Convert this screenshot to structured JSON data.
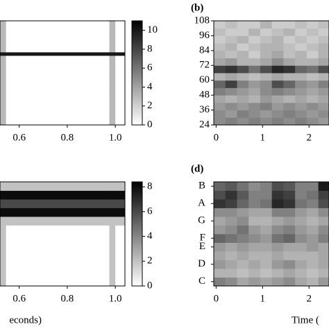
{
  "chart_data": [
    {
      "type": "heatmap",
      "x_edges": [
        0.52,
        0.545,
        0.975,
        1.0,
        1.04
      ],
      "z": [
        [
          3,
          0,
          3,
          0
        ],
        [
          3,
          0,
          3,
          0
        ],
        [
          3,
          0,
          3,
          0
        ],
        [
          3,
          0,
          3,
          0
        ],
        [
          3,
          0,
          3,
          0
        ],
        [
          3,
          0,
          3,
          0
        ],
        [
          3,
          0,
          3,
          0
        ],
        [
          3,
          0,
          3,
          0
        ],
        [
          3,
          0,
          3,
          0
        ],
        [
          3,
          0,
          3,
          0
        ],
        [
          3,
          0,
          3,
          0
        ],
        [
          3,
          0,
          3,
          0
        ],
        [
          3,
          0,
          3,
          0
        ],
        [
          3,
          0,
          3,
          0
        ],
        [
          3,
          0,
          3,
          0
        ],
        [
          3,
          0,
          3,
          0
        ],
        [
          3,
          0,
          3,
          0
        ],
        [
          3,
          0,
          3,
          0
        ],
        [
          3,
          0,
          3,
          0
        ],
        [
          3,
          0,
          3,
          0
        ],
        [
          10,
          10,
          10,
          10
        ],
        [
          3,
          0,
          3,
          0
        ],
        [
          3,
          0,
          3,
          0
        ],
        [
          3,
          0,
          3,
          0
        ],
        [
          3,
          0,
          3,
          0
        ],
        [
          3,
          0,
          3,
          0
        ],
        [
          3,
          0,
          3,
          0
        ],
        [
          3,
          0,
          3,
          0
        ],
        [
          3,
          0,
          3,
          0
        ],
        [
          3,
          0,
          3,
          0
        ]
      ],
      "xlim": [
        0.52,
        1.04
      ],
      "xticks": [
        0.6,
        0.8,
        {
          "value": 1.0,
          "label": "1.0"
        }
      ],
      "clim": [
        0,
        11
      ],
      "cticks": [
        0,
        2,
        4,
        6,
        8,
        10
      ]
    },
    {
      "type": "heatmap",
      "label": "(b)",
      "x_edges": [
        -0.05,
        0.2,
        0.45,
        0.7,
        0.95,
        1.2,
        1.45,
        1.7,
        1.95,
        2.2,
        2.43
      ],
      "z": [
        [
          0.45,
          0.5,
          0.45,
          0.5,
          0.45,
          0.5,
          0.45,
          0.5,
          0.45,
          0.4
        ],
        [
          0.45,
          0.4,
          0.5,
          0.45,
          0.4,
          0.45,
          0.5,
          0.45,
          0.4,
          0.45
        ],
        [
          0.4,
          0.45,
          0.4,
          0.45,
          0.5,
          0.4,
          0.45,
          0.4,
          0.45,
          0.4
        ],
        [
          0.35,
          0.3,
          0.35,
          0.3,
          0.4,
          0.35,
          0.3,
          0.35,
          0.3,
          0.35
        ],
        [
          0.5,
          0.45,
          0.4,
          0.35,
          0.45,
          0.5,
          0.45,
          0.4,
          0.35,
          0.4
        ],
        [
          0.6,
          0.75,
          0.5,
          0.4,
          0.45,
          0.7,
          0.6,
          0.45,
          0.4,
          0.5
        ],
        [
          0.3,
          0.35,
          0.3,
          0.25,
          0.3,
          0.35,
          0.3,
          0.3,
          0.25,
          0.3
        ],
        [
          0.75,
          0.8,
          0.7,
          0.55,
          0.7,
          0.85,
          0.8,
          0.6,
          0.55,
          0.7
        ],
        [
          0.35,
          0.4,
          0.3,
          0.3,
          0.35,
          0.45,
          0.35,
          0.3,
          0.3,
          0.35
        ],
        [
          0.3,
          0.25,
          0.3,
          0.2,
          0.3,
          0.35,
          0.25,
          0.3,
          0.2,
          0.3
        ],
        [
          0.25,
          0.3,
          0.2,
          0.25,
          0.3,
          0.3,
          0.25,
          0.2,
          0.25,
          0.3
        ],
        [
          0.2,
          0.25,
          0.3,
          0.2,
          0.25,
          0.3,
          0.2,
          0.25,
          0.2,
          0.25
        ],
        [
          0.25,
          0.2,
          0.2,
          0.3,
          0.2,
          0.25,
          0.3,
          0.2,
          0.25,
          0.2
        ],
        [
          0.2,
          0.25,
          0.2,
          0.2,
          0.3,
          0.2,
          0.2,
          0.25,
          0.2,
          0.25
        ]
      ],
      "xlim": [
        -0.05,
        2.43
      ],
      "xticks": [
        0,
        1,
        2
      ],
      "ylim": [
        24,
        108
      ],
      "yticks": [
        24,
        36,
        48,
        60,
        72,
        84,
        96,
        108
      ],
      "clim": [
        0,
        1
      ]
    },
    {
      "type": "heatmap",
      "x_edges": [
        0.52,
        0.545,
        0.975,
        1.0,
        1.04
      ],
      "z": [
        [
          2,
          0,
          2,
          0
        ],
        [
          2,
          0,
          2,
          0
        ],
        [
          2,
          0,
          2,
          0
        ],
        [
          2,
          0,
          2,
          0
        ],
        [
          2,
          0,
          2,
          0
        ],
        [
          2,
          0,
          2,
          0
        ],
        [
          2,
          0,
          2,
          0
        ],
        [
          2,
          2,
          2,
          2
        ],
        [
          8,
          8,
          8,
          8
        ],
        [
          6,
          6,
          6,
          6
        ],
        [
          8,
          8,
          8,
          8
        ],
        [
          2,
          2,
          2,
          2
        ]
      ],
      "xlim": [
        0.52,
        1.04
      ],
      "xticks": [
        0.6,
        0.8,
        {
          "value": 1.0,
          "label": "1.0"
        }
      ],
      "x_label": "econds)",
      "clim": [
        0,
        8.4
      ],
      "cticks": [
        0,
        2,
        4,
        6,
        8
      ]
    },
    {
      "type": "heatmap",
      "label": "(d)",
      "x_edges": [
        -0.05,
        0.2,
        0.45,
        0.7,
        0.95,
        1.2,
        1.45,
        1.7,
        1.95,
        2.2,
        2.43
      ],
      "z": [
        [
          0.5,
          0.45,
          0.35,
          0.4,
          0.35,
          0.4,
          0.45,
          0.35,
          0.3,
          0.4
        ],
        [
          0.3,
          0.3,
          0.25,
          0.3,
          0.25,
          0.3,
          0.35,
          0.3,
          0.25,
          0.3
        ],
        [
          0.4,
          0.35,
          0.3,
          0.35,
          0.3,
          0.4,
          0.45,
          0.35,
          0.3,
          0.35
        ],
        [
          0.35,
          0.3,
          0.35,
          0.3,
          0.3,
          0.35,
          0.3,
          0.3,
          0.3,
          0.35
        ],
        [
          0.4,
          0.35,
          0.4,
          0.35,
          0.35,
          0.4,
          0.35,
          0.35,
          0.4,
          0.35
        ],
        [
          0.6,
          0.55,
          0.5,
          0.45,
          0.4,
          0.55,
          0.6,
          0.45,
          0.4,
          0.5
        ],
        [
          0.4,
          0.45,
          0.55,
          0.4,
          0.35,
          0.45,
          0.5,
          0.4,
          0.35,
          0.45
        ],
        [
          0.35,
          0.4,
          0.45,
          0.3,
          0.3,
          0.35,
          0.4,
          0.35,
          0.3,
          0.35
        ],
        [
          0.45,
          0.45,
          0.4,
          0.35,
          0.35,
          0.5,
          0.5,
          0.4,
          0.35,
          0.45
        ],
        [
          0.8,
          0.75,
          0.6,
          0.5,
          0.55,
          0.85,
          0.8,
          0.55,
          0.5,
          0.7
        ],
        [
          0.7,
          0.8,
          0.65,
          0.5,
          0.5,
          0.8,
          0.75,
          0.5,
          0.55,
          0.75
        ],
        [
          0.6,
          0.65,
          0.55,
          0.45,
          0.5,
          0.7,
          0.65,
          0.5,
          0.5,
          0.9
        ]
      ],
      "xlim": [
        -0.05,
        2.43
      ],
      "xticks": [
        0,
        1,
        2
      ],
      "x_label": "Time (",
      "categories": [
        "C",
        null,
        "D",
        null,
        "E",
        "F",
        null,
        "G",
        null,
        "A",
        null,
        "B"
      ],
      "clim": [
        0,
        1
      ]
    }
  ]
}
